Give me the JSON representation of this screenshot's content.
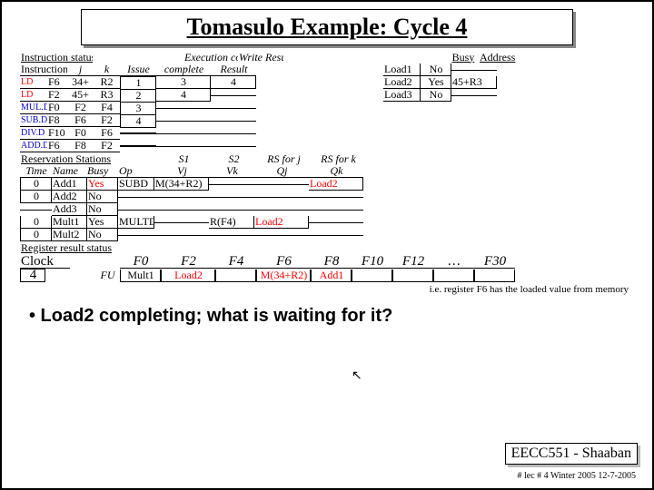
{
  "title": "Tomasulo Example:  Cycle 4",
  "instr_status_hdr": "Instruction status",
  "instr_hdr": {
    "i": "Instruction",
    "j": "j",
    "k": "k",
    "issue": "Issue",
    "exec": "Execution complete",
    "write": "Write Result"
  },
  "instrs": [
    {
      "op": "LD",
      "dst": "F6",
      "j": "34+",
      "k": "R2",
      "issue": "1",
      "exec": "3",
      "write": "4",
      "opcolor": "red"
    },
    {
      "op": "LD",
      "dst": "F2",
      "j": "45+",
      "k": "R3",
      "issue": "2",
      "exec": "4",
      "write": "",
      "opcolor": "red"
    },
    {
      "op": "MUL.D",
      "dst": "F0",
      "j": "F2",
      "k": "F4",
      "issue": "3",
      "exec": "",
      "write": "",
      "opcolor": "blue"
    },
    {
      "op": "SUB.D",
      "dst": "F8",
      "j": "F6",
      "k": "F2",
      "issue": "4",
      "exec": "",
      "write": "",
      "opcolor": "blue"
    },
    {
      "op": "DIV.D",
      "dst": "F10",
      "j": "F0",
      "k": "F6",
      "issue": "",
      "exec": "",
      "write": "",
      "opcolor": "blue"
    },
    {
      "op": "ADD.D",
      "dst": "F6",
      "j": "F8",
      "k": "F2",
      "issue": "",
      "exec": "",
      "write": "",
      "opcolor": "blue"
    }
  ],
  "res_hdr": "Reservation Stations",
  "rs_cols": {
    "time": "Time",
    "name": "Name",
    "busy": "Busy",
    "op": "Op",
    "s1": "S1",
    "vj": "Vj",
    "s2": "S2",
    "vk": "Vk",
    "rsj": "RS for j",
    "qj": "Qj",
    "rsk": "RS for k",
    "qk": "Qk"
  },
  "rs": [
    {
      "time": "0",
      "name": "Add1",
      "busy": "Yes",
      "op": "SUBD",
      "vj": "M(34+R2)",
      "vk": "",
      "qj": "",
      "qk": "Load2",
      "busycolor": "red",
      "qkcolor": "red"
    },
    {
      "time": "0",
      "name": "Add2",
      "busy": "No",
      "op": "",
      "vj": "",
      "vk": "",
      "qj": "",
      "qk": ""
    },
    {
      "time": "",
      "name": "Add3",
      "busy": "No",
      "op": "",
      "vj": "",
      "vk": "",
      "qj": "",
      "qk": ""
    },
    {
      "time": "0",
      "name": "Mult1",
      "busy": "Yes",
      "op": "MULTD",
      "vj": "",
      "vk": "R(F4)",
      "qj": "Load2",
      "qk": "",
      "qjcolor": "red"
    },
    {
      "time": "0",
      "name": "Mult2",
      "busy": "No",
      "op": "",
      "vj": "",
      "vk": "",
      "qj": "",
      "qk": ""
    }
  ],
  "reg_hdr": "Register result status",
  "clock_label": "Clock",
  "clock_val": "4",
  "fu_label": "FU",
  "regs": [
    "F0",
    "F2",
    "F4",
    "F6",
    "F8",
    "F10",
    "F12",
    "…",
    "F30"
  ],
  "regvals": [
    "Mult1",
    "Load2",
    "",
    "M(34+R2)",
    "Add1",
    "",
    "",
    "",
    ""
  ],
  "regcolors": [
    "",
    "red",
    "",
    "red",
    "red",
    "",
    "",
    "",
    ""
  ],
  "load_hdr": {
    "busy": "Busy",
    "addr": "Address"
  },
  "loads": [
    {
      "name": "Load1",
      "busy": "No",
      "addr": ""
    },
    {
      "name": "Load2",
      "busy": "Yes",
      "addr": "45+R3"
    },
    {
      "name": "Load3",
      "busy": "No",
      "addr": ""
    }
  ],
  "note": "i.e.  register F6 has the loaded value from memory",
  "bullet": "• Load2 completing; what is waiting for it?",
  "footer": "EECC551 - Shaaban",
  "footer_small": "#  lec # 4  Winter 2005   12-7-2005"
}
